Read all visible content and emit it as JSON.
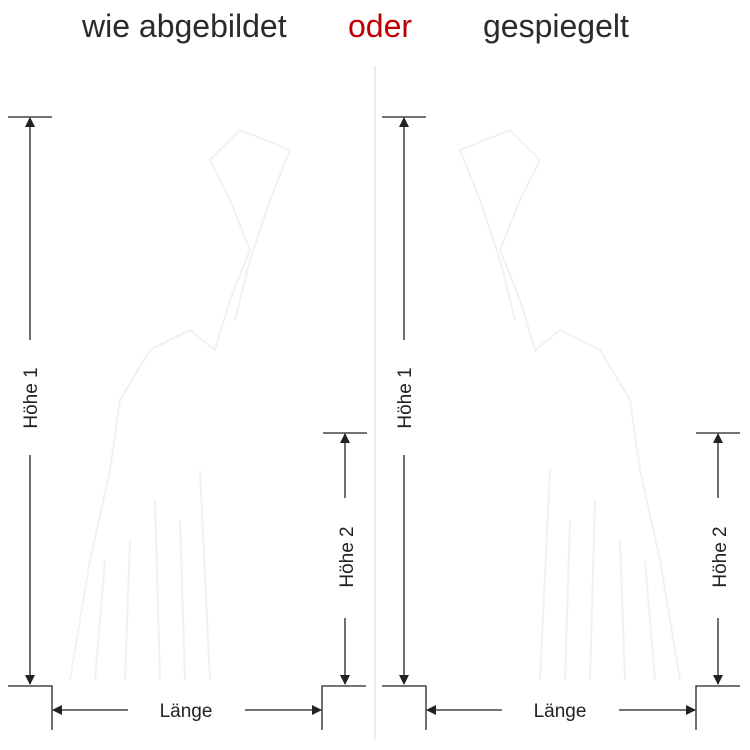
{
  "header": {
    "left": "wie abgebildet",
    "middle": "oder",
    "right": "gespiegelt"
  },
  "labels": {
    "hoehe1": "Höhe 1",
    "hoehe2": "Höhe 2",
    "laenge": "Länge"
  },
  "colors": {
    "text": "#2b2b2b",
    "accent": "#c00000",
    "lines": "#222222",
    "divider": "#d8d8d8"
  }
}
